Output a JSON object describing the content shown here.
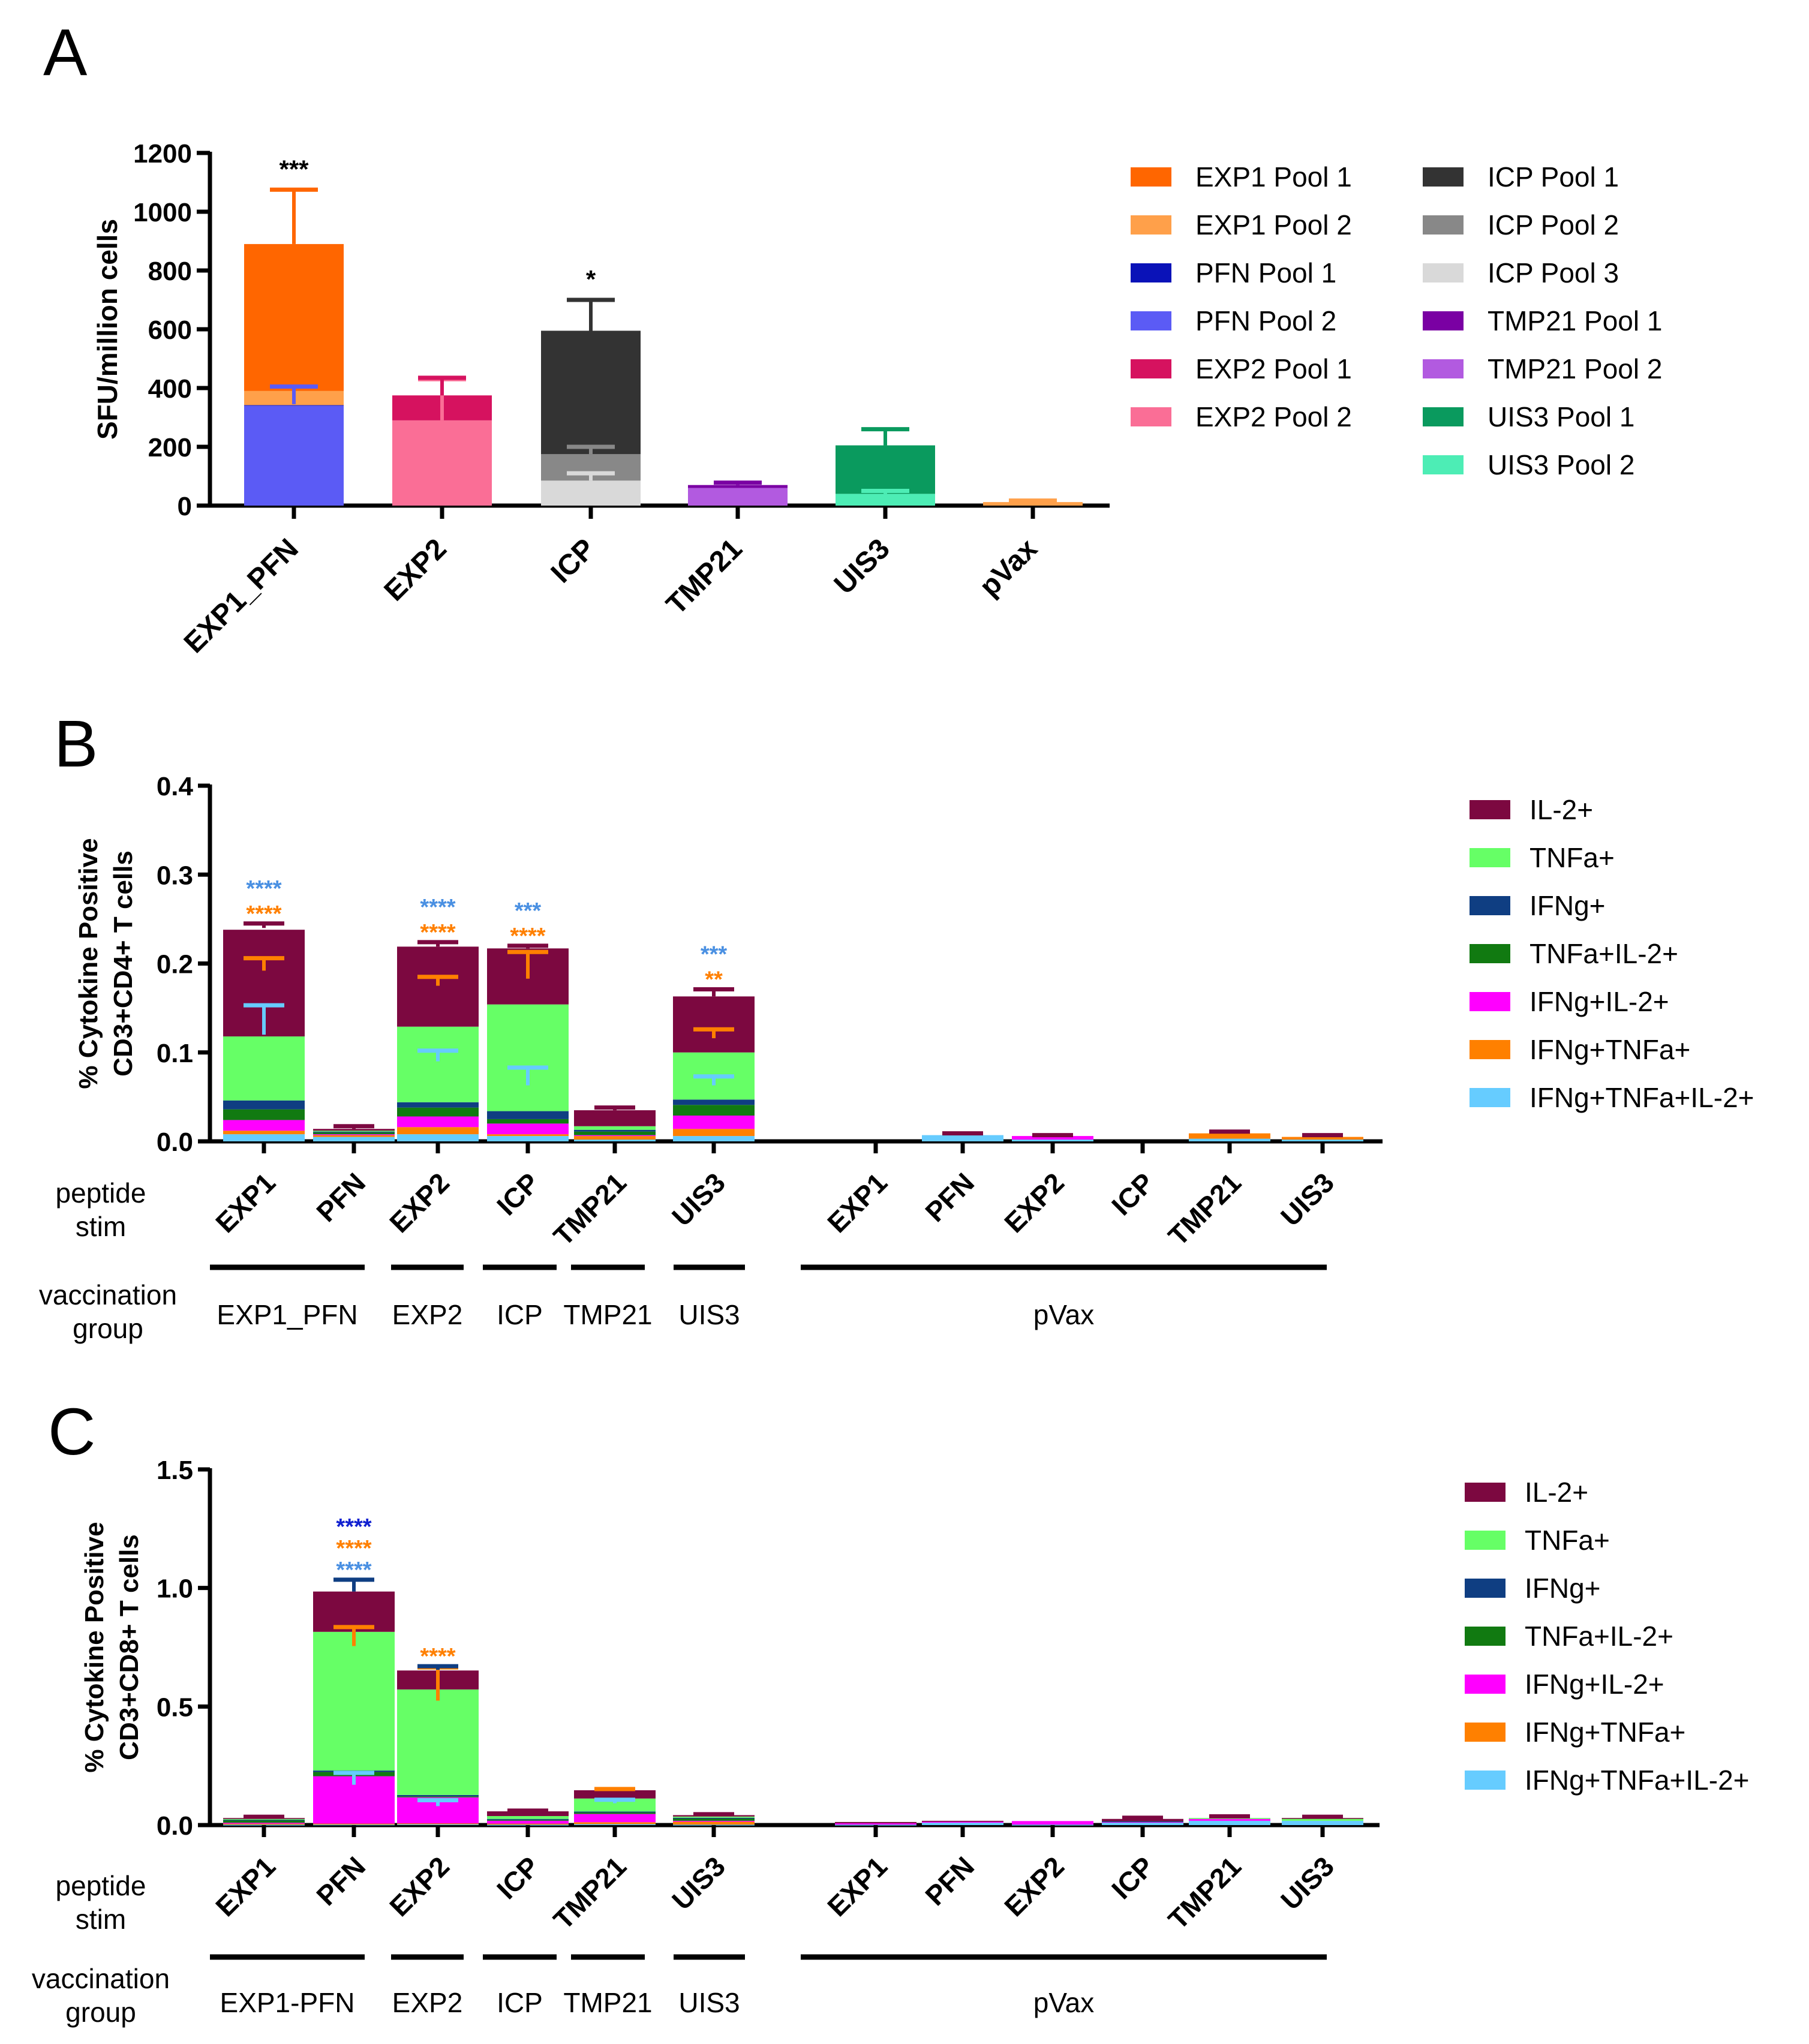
{
  "panels": {
    "A": {
      "letter": "A",
      "chart_data": {
        "type": "bar",
        "stacked": true,
        "ylabel": "SFU/million cells",
        "ylim": [
          0,
          1200
        ],
        "yticks": [
          0,
          200,
          400,
          600,
          800,
          1000,
          1200
        ],
        "categories": [
          "EXP1_PFN",
          "EXP2",
          "ICP",
          "TMP21",
          "UIS3",
          "pVax"
        ],
        "legend_position": "right",
        "series": [
          {
            "name": "EXP1 Pool 1",
            "color": "#FF6600"
          },
          {
            "name": "EXP1 Pool 2",
            "color": "#FFA04A"
          },
          {
            "name": "PFN Pool 1",
            "color": "#0A12B8"
          },
          {
            "name": "PFN Pool 2",
            "color": "#5B5BF5"
          },
          {
            "name": "EXP2 Pool 1",
            "color": "#D6125F"
          },
          {
            "name": "EXP2 Pool 2",
            "color": "#FA6E96"
          },
          {
            "name": "ICP Pool 1",
            "color": "#333333"
          },
          {
            "name": "ICP Pool 2",
            "color": "#888888"
          },
          {
            "name": "ICP Pool 3",
            "color": "#D9D9D9"
          },
          {
            "name": "TMP21 Pool 1",
            "color": "#7A00A3"
          },
          {
            "name": "TMP21 Pool 2",
            "color": "#B25AE0"
          },
          {
            "name": "UIS3 Pool 1",
            "color": "#0A9A5E"
          },
          {
            "name": "UIS3 Pool 2",
            "color": "#4DEDB5"
          }
        ],
        "bars": [
          {
            "category": "EXP1_PFN",
            "segments": [
              {
                "series": "PFN Pool 2",
                "bottom": 0,
                "top": 340
              },
              {
                "series": "PFN Pool 1",
                "bottom": 340,
                "top": 342
              },
              {
                "series": "EXP1 Pool 2",
                "bottom": 342,
                "top": 390
              },
              {
                "series": "EXP1 Pool 1",
                "bottom": 390,
                "top": 890
              }
            ],
            "errors": [
              {
                "value": 345,
                "err": 0
              },
              {
                "value": 345,
                "err": 60
              },
              {
                "value": 890,
                "err": 185
              }
            ],
            "sig": "***"
          },
          {
            "category": "EXP2",
            "segments": [
              {
                "series": "EXP2 Pool 2",
                "bottom": 0,
                "top": 290
              },
              {
                "series": "EXP2 Pool 1",
                "bottom": 290,
                "top": 375
              }
            ],
            "errors": [
              {
                "value": 290,
                "err": 140
              },
              {
                "value": 375,
                "err": 60
              }
            ],
            "sig": ""
          },
          {
            "category": "ICP",
            "segments": [
              {
                "series": "ICP Pool 3",
                "bottom": 0,
                "top": 85
              },
              {
                "series": "ICP Pool 2",
                "bottom": 85,
                "top": 175
              },
              {
                "series": "ICP Pool 1",
                "bottom": 175,
                "top": 595
              }
            ],
            "errors": [
              {
                "value": 85,
                "err": 25
              },
              {
                "value": 175,
                "err": 25
              },
              {
                "value": 595,
                "err": 105
              }
            ],
            "sig": "*"
          },
          {
            "category": "TMP21",
            "segments": [
              {
                "series": "TMP21 Pool 2",
                "bottom": 0,
                "top": 60
              },
              {
                "series": "TMP21 Pool 1",
                "bottom": 60,
                "top": 70
              }
            ],
            "errors": [
              {
                "value": 70,
                "err": 8
              }
            ],
            "sig": ""
          },
          {
            "category": "UIS3",
            "segments": [
              {
                "series": "UIS3 Pool 2",
                "bottom": 0,
                "top": 40
              },
              {
                "series": "UIS3 Pool 1",
                "bottom": 40,
                "top": 205
              }
            ],
            "errors": [
              {
                "value": 40,
                "err": 10
              },
              {
                "value": 205,
                "err": 55
              }
            ],
            "sig": ""
          },
          {
            "category": "pVax",
            "segments": [
              {
                "series": "EXP1 Pool 2",
                "bottom": 0,
                "top": 12
              }
            ],
            "errors": [
              {
                "value": 12,
                "err": 5
              }
            ],
            "sig": ""
          }
        ]
      }
    },
    "B": {
      "letter": "B",
      "chart_data": {
        "type": "bar",
        "stacked": true,
        "ylabel_lines": [
          "% Cytokine Positive",
          "CD3+CD4+ T cells"
        ],
        "ylim": [
          0,
          0.4
        ],
        "yticks": [
          "0.0",
          "0.1",
          "0.2",
          "0.3",
          "0.4"
        ],
        "ytick_values": [
          0,
          0.1,
          0.2,
          0.3,
          0.4
        ],
        "categories": [
          "EXP1",
          "PFN",
          "EXP2",
          "ICP",
          "TMP21",
          "UIS3",
          "EXP1",
          "PFN",
          "EXP2",
          "ICP",
          "TMP21",
          "UIS3"
        ],
        "stim_label_lines": [
          "peptide",
          "stim"
        ],
        "vacc_label_lines": [
          "vaccination",
          "group"
        ],
        "groups": [
          "EXP1_PFN",
          "EXP2",
          "ICP",
          "TMP21",
          "UIS3",
          "pVax"
        ],
        "legend_position": "right",
        "series": [
          {
            "name": "IL-2+",
            "color": "#7C0840"
          },
          {
            "name": "TNFa+",
            "color": "#66FF66"
          },
          {
            "name": "IFNg+",
            "color": "#0F3E82"
          },
          {
            "name": "TNFa+IL-2+",
            "color": "#117A11"
          },
          {
            "name": "IFNg+IL-2+",
            "color": "#FF00FF"
          },
          {
            "name": "IFNg+TNFa+",
            "color": "#FF8000"
          },
          {
            "name": "IFNg+TNFa+IL-2+",
            "color": "#66CCFF"
          }
        ],
        "values": [
          [
            0.12,
            0.072,
            0.01,
            0.012,
            0.012,
            0.004,
            0.008
          ],
          [
            0.002,
            0.001,
            0.001,
            0.002,
            0.001,
            0.002,
            0.005
          ],
          [
            0.09,
            0.085,
            0.006,
            0.01,
            0.012,
            0.008,
            0.008
          ],
          [
            0.063,
            0.12,
            0.009,
            0.005,
            0.012,
            0.002,
            0.006
          ],
          [
            0.018,
            0.004,
            0.002,
            0.004,
            0.001,
            0.004,
            0.002
          ],
          [
            0.063,
            0.053,
            0.006,
            0.012,
            0.015,
            0.008,
            0.006
          ],
          [
            0,
            0,
            0,
            0,
            0,
            0,
            0
          ],
          [
            0,
            0,
            0,
            0,
            0,
            0,
            0.007
          ],
          [
            0,
            0,
            0,
            0,
            0.004,
            0,
            0.002
          ],
          [
            0,
            0,
            0,
            0,
            0,
            0,
            0
          ],
          [
            0,
            0,
            0,
            0,
            0,
            0.006,
            0.003
          ],
          [
            0,
            0,
            0,
            0,
            0,
            0.003,
            0.002
          ]
        ],
        "errors": [
          [
            {
              "value": 0.12,
              "err": 0.033
            },
            {
              "value": 0.192,
              "err": 0.014
            },
            {
              "value": 0.24,
              "err": 0.005
            }
          ],
          [
            {
              "value": 0.014,
              "err": 0.003
            }
          ],
          [
            {
              "value": 0.09,
              "err": 0.012
            },
            {
              "value": 0.175,
              "err": 0.01
            },
            {
              "value": 0.219,
              "err": 0.005
            }
          ],
          [
            {
              "value": 0.063,
              "err": 0.02
            },
            {
              "value": 0.183,
              "err": 0.03
            },
            {
              "value": 0.217,
              "err": 0.003
            }
          ],
          [
            {
              "value": 0.035,
              "err": 0.003
            }
          ],
          [
            {
              "value": 0.063,
              "err": 0.01
            },
            {
              "value": 0.116,
              "err": 0.01
            },
            {
              "value": 0.163,
              "err": 0.008
            }
          ],
          [],
          [
            {
              "value": 0.007,
              "err": 0.002
            }
          ],
          [
            {
              "value": 0.006,
              "err": 0.001
            }
          ],
          [],
          [
            {
              "value": 0.009,
              "err": 0.002
            }
          ],
          [
            {
              "value": 0.005,
              "err": 0.002
            }
          ]
        ],
        "significance": [
          [
            {
              "text": "****",
              "color": "#FF8000"
            },
            {
              "text": "****",
              "color": "#4A90E2"
            }
          ],
          [],
          [
            {
              "text": "****",
              "color": "#FF8000"
            },
            {
              "text": "****",
              "color": "#4A90E2"
            }
          ],
          [
            {
              "text": "****",
              "color": "#FF8000"
            },
            {
              "text": "***",
              "color": "#4A90E2"
            }
          ],
          [],
          [
            {
              "text": "**",
              "color": "#FF8000"
            },
            {
              "text": "***",
              "color": "#4A90E2"
            }
          ],
          [],
          [],
          [],
          [],
          [],
          []
        ]
      }
    },
    "C": {
      "letter": "C",
      "chart_data": {
        "type": "bar",
        "stacked": true,
        "ylabel_lines": [
          "% Cytokine Positive",
          "CD3+CD8+ T cells"
        ],
        "ylim": [
          0,
          1.5
        ],
        "yticks": [
          "0.0",
          "0.5",
          "1.0",
          "1.5"
        ],
        "ytick_values": [
          0,
          0.5,
          1.0,
          1.5
        ],
        "categories": [
          "EXP1",
          "PFN",
          "EXP2",
          "ICP",
          "TMP21",
          "UIS3",
          "EXP1",
          "PFN",
          "EXP2",
          "ICP",
          "TMP21",
          "UIS3"
        ],
        "stim_label_lines": [
          "peptide",
          "stim"
        ],
        "vacc_label_lines": [
          "vaccination",
          "group"
        ],
        "groups": [
          "EXP1-PFN",
          "EXP2",
          "ICP",
          "TMP21",
          "UIS3",
          "pVax"
        ],
        "legend_position": "right",
        "series": [
          {
            "name": "IL-2+",
            "color": "#7C0840"
          },
          {
            "name": "TNFa+",
            "color": "#66FF66"
          },
          {
            "name": "IFNg+",
            "color": "#0F3E82"
          },
          {
            "name": "TNFa+IL-2+",
            "color": "#117A11"
          },
          {
            "name": "IFNg+IL-2+",
            "color": "#FF00FF"
          },
          {
            "name": "IFNg+TNFa+",
            "color": "#FF8000"
          },
          {
            "name": "IFNg+TNFa+IL-2+",
            "color": "#66CCFF"
          }
        ],
        "values": [
          [
            0.004,
            0.003,
            0.001,
            0.012,
            0.004,
            0.004,
            0.002
          ],
          [
            0.17,
            0.585,
            0.006,
            0.018,
            0.2,
            0.003,
            0.003
          ],
          [
            0.08,
            0.445,
            0.006,
            0.004,
            0.11,
            0.003,
            0.004
          ],
          [
            0.02,
            0.012,
            0.004,
            0.002,
            0.014,
            0.004,
            0.002
          ],
          [
            0.035,
            0.055,
            0.004,
            0.006,
            0.035,
            0.008,
            0.004
          ],
          [
            0.006,
            0.005,
            0.001,
            0.012,
            0.003,
            0.013,
            0.002
          ],
          [
            0.005,
            0,
            0,
            0,
            0.006,
            0,
            0.002
          ],
          [
            0.004,
            0,
            0,
            0,
            0.004,
            0,
            0.01
          ],
          [
            0,
            0,
            0,
            0,
            0.015,
            0,
            0.002
          ],
          [
            0.01,
            0,
            0.002,
            0,
            0.004,
            0,
            0.01
          ],
          [
            0,
            0.004,
            0,
            0,
            0.008,
            0,
            0.018
          ],
          [
            0.002,
            0.01,
            0,
            0,
            0,
            0,
            0.018
          ]
        ],
        "errors": [
          [
            {
              "value": 0.03,
              "err": 0.005
            }
          ],
          [
            {
              "value": 0.17,
              "err": 0.05
            },
            {
              "value": 0.755,
              "err": 0.08
            },
            {
              "value": 0.985,
              "err": 0.05
            }
          ],
          [
            {
              "value": 0.08,
              "err": 0.025
            },
            {
              "value": 0.525,
              "err": 0.14
            },
            {
              "value": 0.655,
              "err": 0.015
            }
          ],
          [
            {
              "value": 0.056,
              "err": 0.005
            }
          ],
          [
            {
              "value": 0.092,
              "err": 0.015
            },
            {
              "value": 0.147,
              "err": 0.005
            }
          ],
          [
            {
              "value": 0.04,
              "err": 0.006
            }
          ],
          [],
          [],
          [],
          [
            {
              "value": 0.028,
              "err": 0.003
            }
          ],
          [
            {
              "value": 0.034,
              "err": 0.003
            }
          ],
          [
            {
              "value": 0.032,
              "err": 0.003
            }
          ]
        ],
        "significance": [
          [],
          [
            {
              "text": "****",
              "color": "#4A90E2"
            },
            {
              "text": "****",
              "color": "#FF8000"
            },
            {
              "text": "****",
              "color": "#1020D0"
            }
          ],
          [
            {
              "text": "****",
              "color": "#FF8000"
            }
          ],
          [],
          [],
          [],
          [],
          [],
          [],
          [],
          [],
          []
        ]
      }
    }
  }
}
